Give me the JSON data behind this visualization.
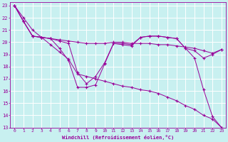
{
  "xlabel": "Windchill (Refroidissement éolien,°C)",
  "bg_color": "#c8f0f0",
  "grid_color": "#ffffff",
  "line_color": "#990099",
  "marker": "+",
  "xlim": [
    -0.5,
    23.5
  ],
  "ylim": [
    13,
    23.3
  ],
  "xticks": [
    0,
    1,
    2,
    3,
    4,
    5,
    6,
    7,
    8,
    9,
    10,
    11,
    12,
    13,
    14,
    15,
    16,
    17,
    18,
    19,
    20,
    21,
    22,
    23
  ],
  "yticks": [
    13,
    14,
    15,
    16,
    17,
    18,
    19,
    20,
    21,
    22,
    23
  ],
  "series": [
    {
      "x": [
        0,
        1,
        2,
        3,
        4,
        5,
        6,
        7,
        8,
        9,
        10,
        11,
        12,
        13,
        14,
        15,
        16,
        17,
        18,
        19,
        20,
        21,
        22,
        23
      ],
      "y": [
        23,
        21.7,
        20.5,
        20.4,
        20.3,
        19.5,
        18.5,
        16.3,
        16.3,
        16.5,
        18.2,
        19.9,
        19.8,
        19.7,
        20.4,
        20.5,
        20.5,
        20.4,
        20.3,
        19.5,
        18.7,
        16.1,
        13.9,
        13.0
      ]
    },
    {
      "x": [
        0,
        1,
        2,
        3,
        4,
        5,
        6,
        7,
        8,
        9,
        10,
        11,
        12,
        13,
        14,
        15,
        16,
        17,
        18,
        19,
        20,
        21,
        22,
        23
      ],
      "y": [
        23,
        21.7,
        20.5,
        20.4,
        20.3,
        20.2,
        20.1,
        20.0,
        19.9,
        19.9,
        19.9,
        20.0,
        20.0,
        19.9,
        19.9,
        19.9,
        19.8,
        19.8,
        19.7,
        19.6,
        19.5,
        19.3,
        19.1,
        19.4
      ]
    },
    {
      "x": [
        0,
        1,
        2,
        3,
        4,
        5,
        6,
        7,
        8,
        9,
        10,
        11,
        12,
        13,
        14,
        15,
        16,
        17,
        18,
        19,
        20,
        21,
        22,
        23
      ],
      "y": [
        23,
        21.7,
        20.5,
        20.4,
        20.3,
        20.1,
        19.9,
        17.5,
        16.6,
        17.2,
        18.3,
        19.9,
        19.9,
        19.8,
        20.4,
        20.5,
        20.5,
        20.4,
        20.3,
        19.5,
        19.3,
        18.7,
        19.0,
        19.4
      ]
    },
    {
      "x": [
        0,
        1,
        2,
        3,
        4,
        5,
        6,
        7,
        8,
        9,
        10,
        11,
        12,
        13,
        14,
        15,
        16,
        17,
        18,
        19,
        20,
        21,
        22,
        23
      ],
      "y": [
        23,
        22.0,
        21.0,
        20.4,
        19.8,
        19.2,
        18.6,
        17.4,
        17.2,
        17.0,
        16.8,
        16.6,
        16.4,
        16.3,
        16.1,
        16.0,
        15.8,
        15.5,
        15.2,
        14.8,
        14.5,
        14.0,
        13.7,
        13.0
      ]
    }
  ]
}
